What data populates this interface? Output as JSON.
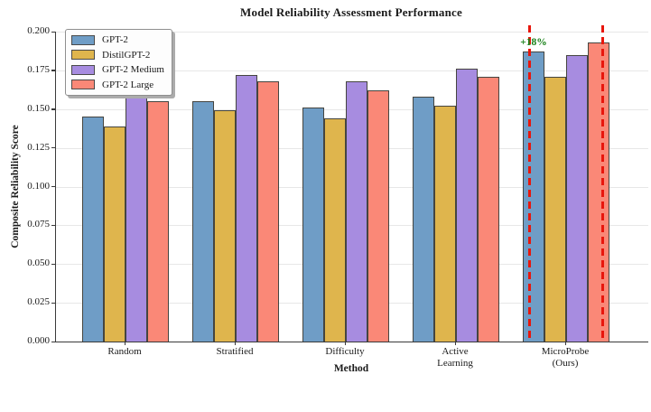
{
  "chart_data": {
    "type": "bar",
    "title": "Model Reliability Assessment Performance",
    "xlabel": "Method",
    "ylabel": "Composite Reliability Score",
    "ylim": [
      0,
      0.2
    ],
    "ytick_step": 0.025,
    "ytick_labels": [
      "0.000",
      "0.025",
      "0.050",
      "0.075",
      "0.100",
      "0.125",
      "0.150",
      "0.175",
      "0.200"
    ],
    "grid": true,
    "legend_position": "upper left",
    "categories": [
      "Random",
      "Stratified",
      "Difficulty",
      "Active Learning",
      "MicroProbe (Ours)"
    ],
    "category_label_lines": [
      [
        "Random"
      ],
      [
        "Stratified"
      ],
      [
        "Difficulty"
      ],
      [
        "Active",
        "Learning"
      ],
      [
        "MicroProbe",
        "(Ours)"
      ]
    ],
    "series": [
      {
        "name": "GPT-2",
        "color": "#6f9dc6",
        "values": [
          0.145,
          0.155,
          0.151,
          0.158,
          0.187
        ]
      },
      {
        "name": "DistilGPT-2",
        "color": "#dfb54d",
        "values": [
          0.139,
          0.149,
          0.144,
          0.152,
          0.171
        ]
      },
      {
        "name": "GPT-2 Medium",
        "color": "#a78ce0",
        "values": [
          0.162,
          0.172,
          0.168,
          0.176,
          0.185
        ]
      },
      {
        "name": "GPT-2 Large",
        "color": "#fa8877",
        "values": [
          0.155,
          0.168,
          0.162,
          0.171,
          0.193
        ]
      }
    ],
    "bar_edge_color": "#454540",
    "annotation": {
      "text": "+18%",
      "color": "#157f15",
      "group": "MicroProbe (Ours)"
    },
    "highlight_lines": {
      "color": "#e8160c",
      "style": "dashed",
      "group": "MicroProbe (Ours)",
      "offsets": [
        -0.335,
        0.335
      ]
    }
  }
}
